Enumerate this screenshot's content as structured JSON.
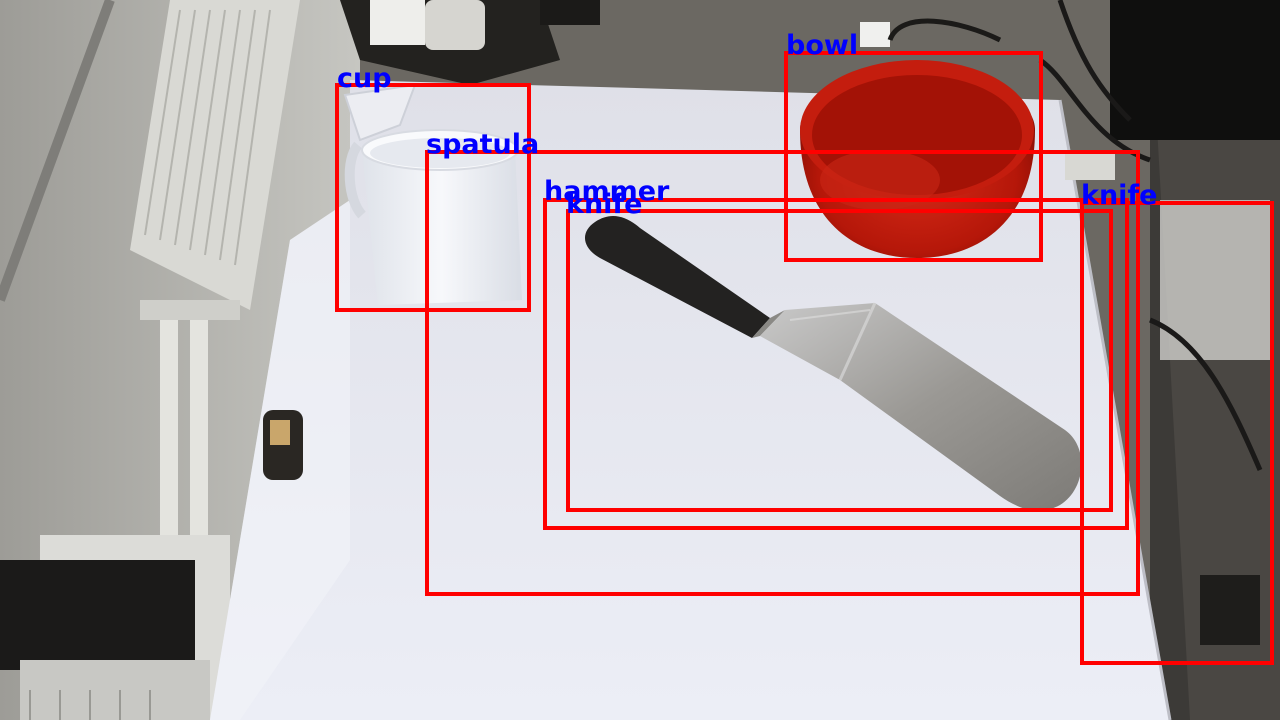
{
  "detections": [
    {
      "label": "cup"
    },
    {
      "label": "bowl"
    },
    {
      "label": "spatula"
    },
    {
      "label": "hammer"
    },
    {
      "label": "knife"
    },
    {
      "label": "knife"
    }
  ],
  "colors": {
    "box": "#ff0000",
    "label": "#0000ff",
    "bowl": "#c0180c",
    "table": "#e6e7f0"
  }
}
